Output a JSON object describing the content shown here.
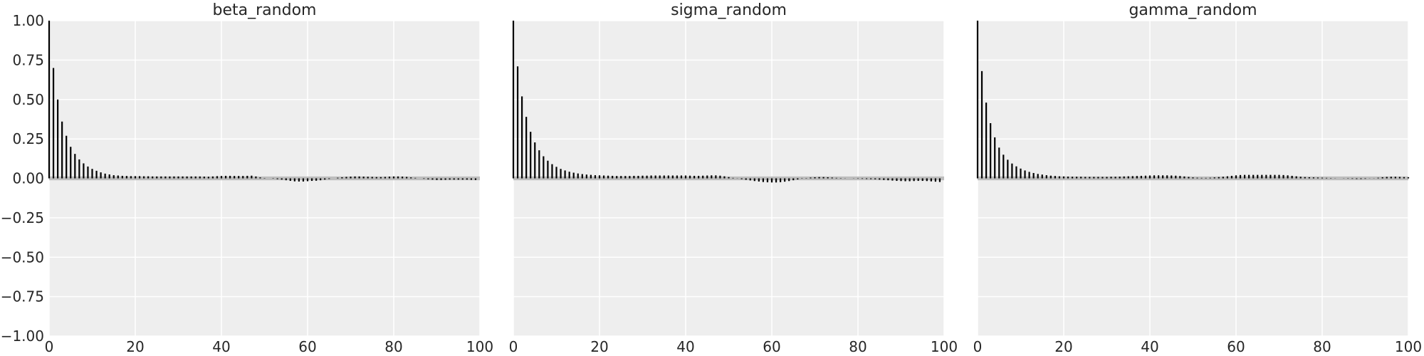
{
  "chart_data": [
    {
      "type": "bar",
      "subtype": "autocorrelation",
      "title": "beta_random",
      "xlabel": "",
      "ylabel": "",
      "xlim": [
        0,
        100
      ],
      "ylim": [
        -1.0,
        1.0
      ],
      "xticks": [
        0,
        20,
        40,
        60,
        80,
        100
      ],
      "yticks": [
        -1.0,
        -0.75,
        -0.5,
        -0.25,
        0.0,
        0.25,
        0.5,
        0.75,
        1.0
      ],
      "ytick_labels": [
        "−1.00",
        "−0.75",
        "−0.50",
        "−0.25",
        "0.00",
        "0.25",
        "0.50",
        "0.75",
        "1.00"
      ],
      "grid": true,
      "values": [
        1.0,
        0.7,
        0.5,
        0.36,
        0.27,
        0.2,
        0.155,
        0.12,
        0.095,
        0.075,
        0.06,
        0.048,
        0.038,
        0.03,
        0.025,
        0.02,
        0.018,
        0.016,
        0.015,
        0.014,
        0.014,
        0.014,
        0.013,
        0.013,
        0.012,
        0.012,
        0.012,
        0.012,
        0.012,
        0.012,
        0.012,
        0.012,
        0.012,
        0.012,
        0.012,
        0.012,
        0.011,
        0.01,
        0.012,
        0.014,
        0.015,
        0.016,
        0.016,
        0.015,
        0.015,
        0.015,
        0.016,
        0.017,
        0.012,
        0.006,
        0.002,
        0.0,
        -0.002,
        -0.005,
        -0.008,
        -0.012,
        -0.016,
        -0.019,
        -0.02,
        -0.02,
        -0.018,
        -0.016,
        -0.015,
        -0.012,
        -0.008,
        -0.004,
        0.0,
        0.004,
        0.007,
        0.009,
        0.011,
        0.012,
        0.012,
        0.011,
        0.01,
        0.009,
        0.008,
        0.008,
        0.009,
        0.011,
        0.012,
        0.012,
        0.011,
        0.009,
        0.006,
        0.003,
        0.0,
        -0.003,
        -0.006,
        -0.008,
        -0.01,
        -0.01,
        -0.009,
        -0.008,
        -0.008,
        -0.008,
        -0.008,
        -0.008,
        -0.009,
        -0.01
      ]
    },
    {
      "type": "bar",
      "subtype": "autocorrelation",
      "title": "sigma_random",
      "xlabel": "",
      "ylabel": "",
      "xlim": [
        0,
        100
      ],
      "ylim": [
        -1.0,
        1.0
      ],
      "xticks": [
        0,
        20,
        40,
        60,
        80,
        100
      ],
      "grid": true,
      "values": [
        1.0,
        0.71,
        0.52,
        0.39,
        0.295,
        0.228,
        0.178,
        0.14,
        0.112,
        0.09,
        0.073,
        0.06,
        0.05,
        0.042,
        0.036,
        0.031,
        0.027,
        0.024,
        0.022,
        0.02,
        0.019,
        0.018,
        0.017,
        0.016,
        0.015,
        0.015,
        0.015,
        0.015,
        0.016,
        0.016,
        0.017,
        0.017,
        0.018,
        0.018,
        0.018,
        0.018,
        0.018,
        0.018,
        0.018,
        0.018,
        0.018,
        0.017,
        0.016,
        0.016,
        0.017,
        0.018,
        0.019,
        0.019,
        0.017,
        0.013,
        0.008,
        0.003,
        -0.001,
        -0.005,
        -0.009,
        -0.013,
        -0.017,
        -0.02,
        -0.023,
        -0.025,
        -0.026,
        -0.026,
        -0.024,
        -0.021,
        -0.017,
        -0.012,
        -0.007,
        -0.002,
        0.002,
        0.005,
        0.007,
        0.008,
        0.008,
        0.007,
        0.005,
        0.003,
        0.002,
        0.001,
        0.0,
        -0.001,
        -0.002,
        -0.003,
        -0.004,
        -0.005,
        -0.006,
        -0.008,
        -0.01,
        -0.012,
        -0.014,
        -0.016,
        -0.017,
        -0.018,
        -0.018,
        -0.017,
        -0.016,
        -0.016,
        -0.017,
        -0.019,
        -0.021,
        -0.023
      ]
    },
    {
      "type": "bar",
      "subtype": "autocorrelation",
      "title": "gamma_random",
      "xlabel": "",
      "ylabel": "",
      "xlim": [
        0,
        100
      ],
      "ylim": [
        -1.0,
        1.0
      ],
      "xticks": [
        0,
        20,
        40,
        60,
        80,
        100
      ],
      "grid": true,
      "values": [
        1.0,
        0.68,
        0.48,
        0.35,
        0.26,
        0.195,
        0.15,
        0.118,
        0.094,
        0.076,
        0.062,
        0.05,
        0.041,
        0.034,
        0.028,
        0.024,
        0.02,
        0.017,
        0.015,
        0.013,
        0.012,
        0.011,
        0.01,
        0.01,
        0.01,
        0.009,
        0.009,
        0.009,
        0.009,
        0.009,
        0.009,
        0.01,
        0.01,
        0.011,
        0.012,
        0.013,
        0.014,
        0.015,
        0.016,
        0.017,
        0.018,
        0.019,
        0.019,
        0.019,
        0.019,
        0.018,
        0.017,
        0.015,
        0.012,
        0.009,
        0.006,
        0.004,
        0.003,
        0.003,
        0.004,
        0.006,
        0.008,
        0.01,
        0.013,
        0.016,
        0.019,
        0.021,
        0.022,
        0.022,
        0.022,
        0.022,
        0.022,
        0.022,
        0.022,
        0.022,
        0.022,
        0.021,
        0.019,
        0.016,
        0.013,
        0.01,
        0.008,
        0.007,
        0.006,
        0.005,
        0.004,
        0.003,
        0.002,
        0.001,
        0.0,
        -0.001,
        -0.002,
        -0.003,
        -0.004,
        -0.004,
        -0.003,
        -0.001,
        0.001,
        0.004,
        0.007,
        0.009,
        0.01,
        0.01,
        0.009,
        0.008,
        0.007
      ]
    }
  ]
}
